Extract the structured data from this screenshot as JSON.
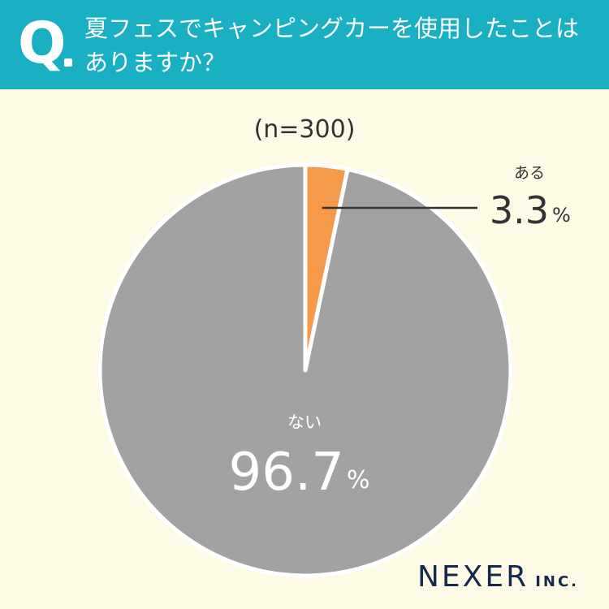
{
  "header": {
    "q_mark": "Q",
    "question": "夏フェスでキャンピングカーを使用したことはありますか？"
  },
  "sample_note": "(n=300)",
  "chart_data": {
    "type": "pie",
    "slices": [
      {
        "label": "ある",
        "value": 3.3,
        "value_text": "3.3",
        "unit": "%",
        "color": "#f59a4a"
      },
      {
        "label": "ない",
        "value": 96.7,
        "value_text": "96.7",
        "unit": "%",
        "color": "#a2a2a2"
      }
    ],
    "start": "12 o'clock",
    "direction": "clockwise"
  },
  "brand": {
    "name": "NEXER",
    "suffix": "INC."
  }
}
